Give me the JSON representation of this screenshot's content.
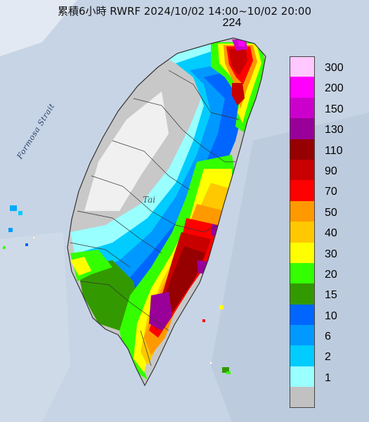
{
  "title": "累積6小時 RWRF 2024/10/02 14:00~10/02 20:00",
  "max_value": "224",
  "labels": {
    "strait": "Formosa Strait",
    "place": "Tai"
  },
  "legend": [
    {
      "label": "300",
      "color": "#ffc8ff"
    },
    {
      "label": "200",
      "color": "#ff00ff"
    },
    {
      "label": "150",
      "color": "#cc00cc"
    },
    {
      "label": "130",
      "color": "#990099"
    },
    {
      "label": "110",
      "color": "#960000"
    },
    {
      "label": "90",
      "color": "#c80000"
    },
    {
      "label": "70",
      "color": "#ff0000"
    },
    {
      "label": "50",
      "color": "#ff9900"
    },
    {
      "label": "40",
      "color": "#ffc800"
    },
    {
      "label": "30",
      "color": "#ffff00"
    },
    {
      "label": "20",
      "color": "#33ff00"
    },
    {
      "label": "15",
      "color": "#339900"
    },
    {
      "label": "10",
      "color": "#0066ff"
    },
    {
      "label": "6",
      "color": "#0099ff"
    },
    {
      "label": "2",
      "color": "#00ccff"
    },
    {
      "label": "1",
      "color": "#99ffff"
    },
    {
      "label": "",
      "color": "#c1c1c1"
    }
  ]
}
